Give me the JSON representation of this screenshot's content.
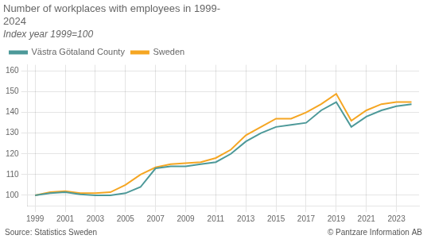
{
  "chart_data": {
    "type": "line",
    "title": [
      "Number of workplaces with employees in 1999-",
      "2024"
    ],
    "subtitle": "Index year 1999=100",
    "annotations": [
      "Source: Statistics Sweden",
      "© Pantzare Information AB"
    ],
    "x": [
      1999,
      2000,
      2001,
      2002,
      2003,
      2004,
      2005,
      2006,
      2007,
      2008,
      2009,
      2010,
      2011,
      2012,
      2013,
      2014,
      2015,
      2016,
      2017,
      2018,
      2019,
      2020,
      2021,
      2022,
      2023,
      2024
    ],
    "series": [
      {
        "name": "Västra Götaland County",
        "color": "#4d9999",
        "values": [
          100,
          101,
          101.5,
          100.5,
          100,
          100,
          101,
          104,
          113,
          114,
          114,
          115,
          116,
          120,
          126,
          130,
          133,
          134,
          135,
          141,
          145,
          133,
          138,
          141,
          143,
          144
        ]
      },
      {
        "name": "Sweden",
        "color": "#f5a623",
        "values": [
          100,
          101.5,
          102,
          101,
          101,
          101.5,
          105,
          110,
          113.5,
          115,
          115.5,
          116,
          118,
          122,
          129,
          133,
          137,
          137,
          140,
          144,
          149,
          136,
          141,
          144,
          145,
          145
        ]
      }
    ],
    "xlim": [
      1998.5,
      2024.5
    ],
    "xticks": [
      1999,
      2001,
      2003,
      2005,
      2007,
      2009,
      2011,
      2013,
      2015,
      2017,
      2019,
      2021,
      2023
    ],
    "ylim": [
      95,
      163
    ],
    "yticks": [
      100,
      110,
      120,
      130,
      140,
      150,
      160
    ],
    "grid": true,
    "legend": "upper left"
  }
}
